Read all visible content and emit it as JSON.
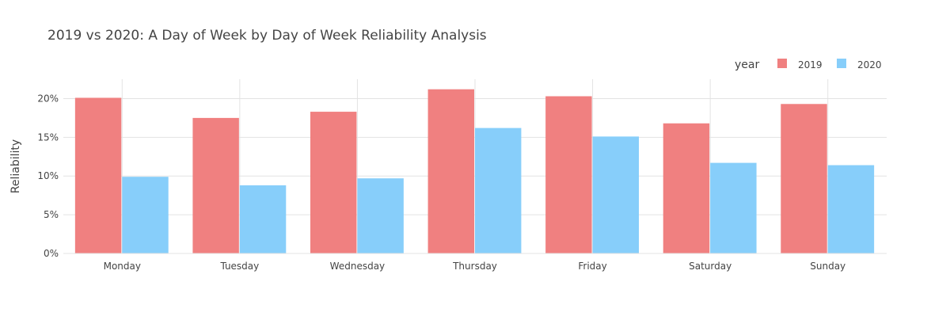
{
  "title": "2019 vs 2020: A Day of Week by Day of Week Reliability Analysis",
  "legend": {
    "title": "year",
    "placement": "top-right",
    "orientation": "horizontal"
  },
  "colors": {
    "series_2019": "#f08080",
    "series_2020": "#87cefa",
    "grid": "#e3e3e3",
    "text": "#444444",
    "background": "#ffffff"
  },
  "chart_data": {
    "type": "bar",
    "mode": "grouped",
    "categories": [
      "Monday",
      "Tuesday",
      "Wednesday",
      "Thursday",
      "Friday",
      "Saturday",
      "Sunday"
    ],
    "series": [
      {
        "name": "2019",
        "values": [
          20.1,
          17.5,
          18.3,
          21.2,
          20.3,
          16.8,
          19.3
        ]
      },
      {
        "name": "2020",
        "values": [
          9.9,
          8.8,
          9.7,
          16.2,
          15.1,
          11.7,
          11.4
        ]
      }
    ],
    "xlabel": "",
    "ylabel": "Reliability",
    "ylim": [
      0,
      22.5
    ],
    "yticks": [
      0,
      5,
      10,
      15,
      20
    ],
    "ytick_labels": [
      "0%",
      "5%",
      "10%",
      "15%",
      "20%"
    ],
    "grid": true
  }
}
